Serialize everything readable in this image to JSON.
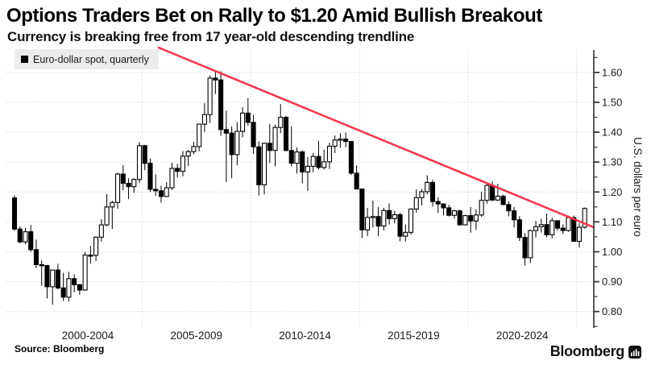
{
  "header": {
    "title": "Options Traders Bet on Rally to $1.20 Amid Bullish Breakout",
    "subtitle": "Currency is breaking free from 17 year-old descending trendline"
  },
  "legend": {
    "label": "Euro-dollar spot, quarterly",
    "swatch_color": "#000000"
  },
  "footer": {
    "source": "Source: Bloomberg",
    "brand": "Bloomberg"
  },
  "chart_data": {
    "type": "candlestick",
    "series_name": "Euro-dollar spot, quarterly",
    "frequency": "quarterly",
    "start_year": 1999,
    "start_quarter": 1,
    "ohlc": [
      [
        1.18,
        1.189,
        1.07,
        1.076
      ],
      [
        1.076,
        1.085,
        1.028,
        1.033
      ],
      [
        1.033,
        1.08,
        1.026,
        1.067
      ],
      [
        1.067,
        1.09,
        1.0,
        1.007
      ],
      [
        1.007,
        1.041,
        0.946,
        0.957
      ],
      [
        0.957,
        0.971,
        0.886,
        0.954
      ],
      [
        0.954,
        0.956,
        0.844,
        0.883
      ],
      [
        0.883,
        0.94,
        0.823,
        0.939
      ],
      [
        0.939,
        0.96,
        0.874,
        0.879
      ],
      [
        0.879,
        0.93,
        0.835,
        0.848
      ],
      [
        0.848,
        0.933,
        0.834,
        0.91
      ],
      [
        0.91,
        0.925,
        0.864,
        0.89
      ],
      [
        0.89,
        0.892,
        0.856,
        0.872
      ],
      [
        0.872,
        0.999,
        0.87,
        0.989
      ],
      [
        0.989,
        1.02,
        0.96,
        0.988
      ],
      [
        0.988,
        1.051,
        0.969,
        1.049
      ],
      [
        1.049,
        1.109,
        1.034,
        1.09
      ],
      [
        1.09,
        1.193,
        1.085,
        1.15
      ],
      [
        1.15,
        1.171,
        1.076,
        1.165
      ],
      [
        1.165,
        1.265,
        1.144,
        1.26
      ],
      [
        1.26,
        1.29,
        1.205,
        1.229
      ],
      [
        1.229,
        1.246,
        1.176,
        1.218
      ],
      [
        1.218,
        1.246,
        1.197,
        1.242
      ],
      [
        1.242,
        1.367,
        1.23,
        1.355
      ],
      [
        1.355,
        1.358,
        1.273,
        1.296
      ],
      [
        1.296,
        1.312,
        1.2,
        1.209
      ],
      [
        1.209,
        1.259,
        1.187,
        1.204
      ],
      [
        1.204,
        1.221,
        1.164,
        1.185
      ],
      [
        1.185,
        1.233,
        1.183,
        1.214
      ],
      [
        1.214,
        1.298,
        1.207,
        1.279
      ],
      [
        1.279,
        1.294,
        1.248,
        1.269
      ],
      [
        1.269,
        1.337,
        1.252,
        1.32
      ],
      [
        1.32,
        1.341,
        1.287,
        1.335
      ],
      [
        1.335,
        1.368,
        1.326,
        1.352
      ],
      [
        1.352,
        1.428,
        1.336,
        1.427
      ],
      [
        1.427,
        1.497,
        1.401,
        1.459
      ],
      [
        1.459,
        1.59,
        1.431,
        1.581
      ],
      [
        1.581,
        1.602,
        1.528,
        1.575
      ],
      [
        1.575,
        1.604,
        1.388,
        1.409
      ],
      [
        1.409,
        1.472,
        1.233,
        1.397
      ],
      [
        1.397,
        1.419,
        1.246,
        1.325
      ],
      [
        1.325,
        1.434,
        1.289,
        1.403
      ],
      [
        1.403,
        1.484,
        1.383,
        1.464
      ],
      [
        1.464,
        1.514,
        1.422,
        1.433
      ],
      [
        1.433,
        1.458,
        1.327,
        1.351
      ],
      [
        1.351,
        1.369,
        1.188,
        1.224
      ],
      [
        1.224,
        1.365,
        1.192,
        1.363
      ],
      [
        1.363,
        1.428,
        1.297,
        1.339
      ],
      [
        1.339,
        1.425,
        1.286,
        1.416
      ],
      [
        1.416,
        1.494,
        1.397,
        1.45
      ],
      [
        1.45,
        1.455,
        1.336,
        1.339
      ],
      [
        1.339,
        1.42,
        1.286,
        1.296
      ],
      [
        1.296,
        1.349,
        1.262,
        1.334
      ],
      [
        1.334,
        1.339,
        1.229,
        1.267
      ],
      [
        1.267,
        1.317,
        1.204,
        1.286
      ],
      [
        1.286,
        1.331,
        1.266,
        1.319
      ],
      [
        1.319,
        1.371,
        1.275,
        1.282
      ],
      [
        1.282,
        1.342,
        1.275,
        1.301
      ],
      [
        1.301,
        1.365,
        1.277,
        1.353
      ],
      [
        1.353,
        1.389,
        1.33,
        1.374
      ],
      [
        1.374,
        1.397,
        1.348,
        1.377
      ],
      [
        1.377,
        1.399,
        1.35,
        1.369
      ],
      [
        1.369,
        1.37,
        1.257,
        1.263
      ],
      [
        1.263,
        1.289,
        1.21,
        1.21
      ],
      [
        1.21,
        1.211,
        1.046,
        1.073
      ],
      [
        1.073,
        1.147,
        1.052,
        1.115
      ],
      [
        1.115,
        1.171,
        1.081,
        1.118
      ],
      [
        1.118,
        1.15,
        1.052,
        1.086
      ],
      [
        1.086,
        1.147,
        1.071,
        1.138
      ],
      [
        1.138,
        1.162,
        1.091,
        1.111
      ],
      [
        1.111,
        1.137,
        1.095,
        1.124
      ],
      [
        1.124,
        1.13,
        1.035,
        1.052
      ],
      [
        1.052,
        1.091,
        1.034,
        1.065
      ],
      [
        1.065,
        1.145,
        1.057,
        1.143
      ],
      [
        1.143,
        1.209,
        1.131,
        1.181
      ],
      [
        1.181,
        1.209,
        1.155,
        1.201
      ],
      [
        1.201,
        1.256,
        1.192,
        1.232
      ],
      [
        1.232,
        1.241,
        1.151,
        1.168
      ],
      [
        1.168,
        1.182,
        1.13,
        1.16
      ],
      [
        1.16,
        1.162,
        1.122,
        1.147
      ],
      [
        1.147,
        1.157,
        1.118,
        1.122
      ],
      [
        1.122,
        1.141,
        1.111,
        1.137
      ],
      [
        1.137,
        1.141,
        1.088,
        1.09
      ],
      [
        1.09,
        1.124,
        1.088,
        1.121
      ],
      [
        1.121,
        1.15,
        1.064,
        1.103
      ],
      [
        1.103,
        1.142,
        1.073,
        1.123
      ],
      [
        1.123,
        1.201,
        1.117,
        1.172
      ],
      [
        1.172,
        1.231,
        1.161,
        1.222
      ],
      [
        1.222,
        1.235,
        1.17,
        1.173
      ],
      [
        1.173,
        1.227,
        1.17,
        1.186
      ],
      [
        1.186,
        1.191,
        1.156,
        1.158
      ],
      [
        1.158,
        1.169,
        1.119,
        1.137
      ],
      [
        1.137,
        1.15,
        1.081,
        1.107
      ],
      [
        1.107,
        1.119,
        1.036,
        1.048
      ],
      [
        1.048,
        1.062,
        0.954,
        0.98
      ],
      [
        0.98,
        1.074,
        0.963,
        1.071
      ],
      [
        1.071,
        1.103,
        1.048,
        1.084
      ],
      [
        1.084,
        1.11,
        1.064,
        1.091
      ],
      [
        1.091,
        1.128,
        1.049,
        1.057
      ],
      [
        1.057,
        1.114,
        1.045,
        1.104
      ],
      [
        1.104,
        1.105,
        1.07,
        1.079
      ],
      [
        1.079,
        1.092,
        1.06,
        1.071
      ],
      [
        1.071,
        1.121,
        1.067,
        1.114
      ],
      [
        1.114,
        1.121,
        1.033,
        1.035
      ],
      [
        1.035,
        1.096,
        1.014,
        1.082
      ],
      [
        1.082,
        1.148,
        1.078,
        1.145
      ]
    ],
    "x_tick_labels": [
      "2000-2004",
      "2005-2009",
      "2010-2014",
      "2015-2019",
      "2020-2024"
    ],
    "x_gridline_years": [
      2005,
      2010,
      2015,
      2020,
      2025
    ],
    "y_ticks": [
      "1.60",
      "1.50",
      "1.40",
      "1.30",
      "1.20",
      "1.10",
      "1.00",
      "0.90",
      "0.80"
    ],
    "y_minor_step": 0.05,
    "ylim": [
      0.75,
      1.66
    ],
    "ylabel": "U.S. dollars per euro",
    "legend_position": "top-left",
    "grid": "dotted",
    "trendline": {
      "x1_year": 2005.76,
      "y1_value": 1.683,
      "x2_year": 2025.79,
      "y2_value": 1.082,
      "color": "#f2394e"
    },
    "colors": {
      "up_fill": "#ffffff",
      "down_fill": "#000000",
      "outline": "#000000",
      "gridline": "#c8c8c8",
      "axis": "#333333",
      "tick_text": "#1a1a1a"
    }
  }
}
